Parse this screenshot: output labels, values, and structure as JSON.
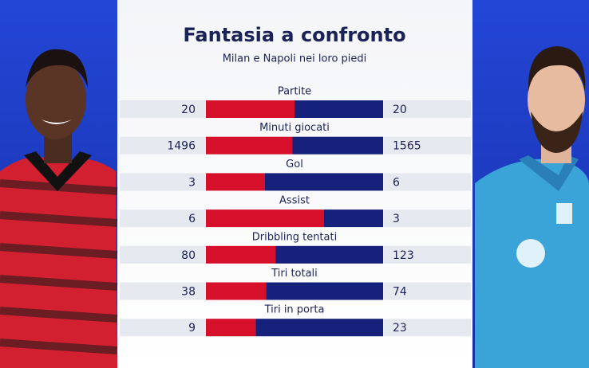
{
  "chart_data": {
    "type": "split-bar",
    "title": "Fantasia a confronto",
    "subtitle": "Milan e Napoli nei loro piedi",
    "categories": [
      "Partite",
      "Minuti giocati",
      "Gol",
      "Assist",
      "Dribbling tentati",
      "Tiri totali",
      "Tiri in porta"
    ],
    "series": [
      {
        "color": "#d6102b",
        "values": [
          20,
          1496,
          3,
          6,
          80,
          38,
          9
        ]
      },
      {
        "color": "#15217a",
        "values": [
          20,
          1565,
          6,
          3,
          123,
          74,
          23
        ]
      }
    ]
  }
}
